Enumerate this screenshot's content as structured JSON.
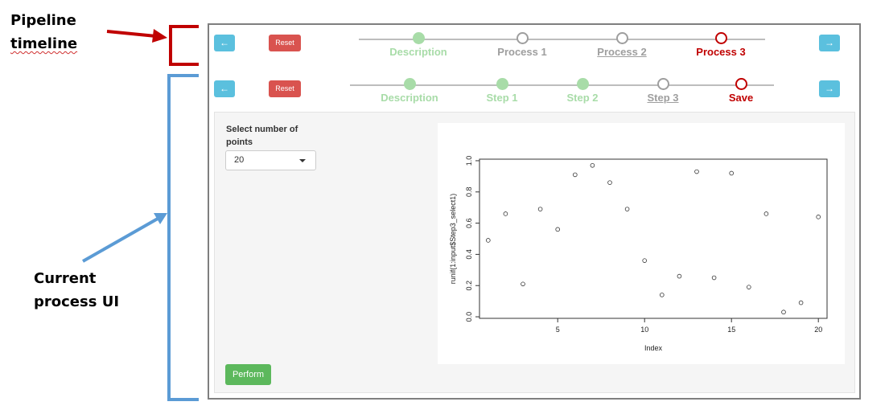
{
  "annotations": {
    "pipeline": {
      "line1": "Pipeline",
      "line2": "timeline"
    },
    "current": {
      "line1": "Current",
      "line2": "process UI"
    }
  },
  "pipeline_bar": {
    "prev_icon": "arrow-left-icon",
    "next_icon": "arrow-right-icon",
    "reset_label": "Reset",
    "steps": [
      {
        "label": "Description",
        "state": "done"
      },
      {
        "label": "Process 1",
        "state": "todo"
      },
      {
        "label": "Process 2",
        "state": "active"
      },
      {
        "label": "Process 3",
        "state": "final"
      }
    ]
  },
  "process_bar": {
    "prev_icon": "arrow-left-icon",
    "next_icon": "arrow-right-icon",
    "reset_label": "Reset",
    "steps": [
      {
        "label": "Description",
        "state": "done"
      },
      {
        "label": "Step 1",
        "state": "done"
      },
      {
        "label": "Step 2",
        "state": "done"
      },
      {
        "label": "Step 3",
        "state": "active"
      },
      {
        "label": "Save",
        "state": "final"
      }
    ]
  },
  "panel": {
    "select_label": "Select number of points",
    "select_value": "20",
    "perform_label": "Perform"
  },
  "colors": {
    "pipeline_bracket": "#c00000",
    "current_bracket": "#5b9bd5",
    "done": "#a8dca8",
    "todo": "#9e9e9e",
    "final": "#c00000",
    "nav_button": "#5bc0de",
    "reset_button": "#d9534f",
    "perform_button": "#5cb85c"
  },
  "chart_data": {
    "type": "scatter",
    "xlabel": "Index",
    "ylabel": "runif(1:input$Step3_select1)",
    "x": [
      1,
      2,
      3,
      4,
      5,
      6,
      7,
      8,
      9,
      10,
      11,
      12,
      13,
      14,
      15,
      16,
      17,
      18,
      19,
      20
    ],
    "y": [
      0.49,
      0.66,
      0.21,
      0.69,
      0.56,
      0.91,
      0.97,
      0.86,
      0.69,
      0.36,
      0.14,
      0.26,
      0.93,
      0.25,
      0.92,
      0.19,
      0.66,
      0.03,
      0.09,
      0.64
    ],
    "xlim": [
      0.5,
      20.5
    ],
    "ylim": [
      -0.01,
      1.01
    ],
    "xticks": [
      5,
      10,
      15,
      20
    ],
    "yticks": [
      0.0,
      0.2,
      0.4,
      0.6,
      0.8,
      1.0
    ],
    "xtick_labels": [
      "5",
      "10",
      "15",
      "20"
    ],
    "ytick_labels": [
      "0.0",
      "0.2",
      "0.4",
      "0.6",
      "0.8",
      "1.0"
    ],
    "grid": false
  }
}
